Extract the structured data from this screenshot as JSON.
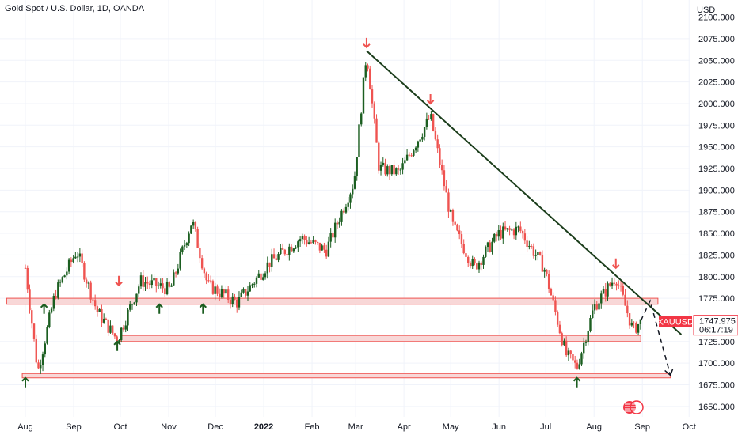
{
  "header": {
    "title": "Gold Spot / U.S. Dollar, 1D, OANDA"
  },
  "colors": {
    "up": "#26a69a",
    "up_dark": "#1b5e20",
    "down": "#ef5350",
    "trendline": "#1b3d1b",
    "zone_fill": "#f8d7d7",
    "zone_stroke": "#ef5350",
    "grid": "#f0f3fa",
    "badge": "#f23645"
  },
  "chart_data": {
    "type": "candlestick",
    "symbol": "XAUUSD",
    "y_unit": "USD",
    "ylim": [
      1650,
      2100
    ],
    "y_ticks": [
      2100,
      2075,
      2050,
      2025,
      2000,
      1975,
      1950,
      1925,
      1900,
      1875,
      1850,
      1825,
      1800,
      1775,
      1750,
      1725,
      1700,
      1675,
      1650
    ],
    "y_tick_labels": [
      "2100.000",
      "2075.000",
      "2050.000",
      "2025.000",
      "2000.000",
      "1975.000",
      "1950.000",
      "1925.000",
      "1900.000",
      "1875.000",
      "1850.000",
      "1825.000",
      "1800.000",
      "1775.000",
      "1750.000",
      "1725.000",
      "1700.000",
      "1675.000",
      "1650.000"
    ],
    "x_labels": [
      "Aug",
      "Sep",
      "Oct",
      "Nov",
      "Dec",
      "2022",
      "Feb",
      "Mar",
      "Apr",
      "May",
      "Jun",
      "Jul",
      "Aug",
      "Sep",
      "Oct"
    ],
    "x_label_bold": "2022",
    "grid": true,
    "last_price": {
      "label": "XAUUSD",
      "price": "1747.975",
      "countdown": "06:17:19"
    },
    "key_points": [
      {
        "date": "2021-08-01",
        "close": 1810
      },
      {
        "date": "2021-08-09",
        "close": 1690
      },
      {
        "date": "2021-08-20",
        "close": 1780
      },
      {
        "date": "2021-09-03",
        "close": 1830
      },
      {
        "date": "2021-09-16",
        "close": 1760
      },
      {
        "date": "2021-09-29",
        "close": 1727
      },
      {
        "date": "2021-10-14",
        "close": 1795
      },
      {
        "date": "2021-11-02",
        "close": 1785
      },
      {
        "date": "2021-11-16",
        "close": 1865
      },
      {
        "date": "2021-11-26",
        "close": 1790
      },
      {
        "date": "2021-12-15",
        "close": 1770
      },
      {
        "date": "2022-01-04",
        "close": 1815
      },
      {
        "date": "2022-01-25",
        "close": 1845
      },
      {
        "date": "2022-02-10",
        "close": 1830
      },
      {
        "date": "2022-02-28",
        "close": 1910
      },
      {
        "date": "2022-03-08",
        "close": 2060
      },
      {
        "date": "2022-03-16",
        "close": 1925
      },
      {
        "date": "2022-03-29",
        "close": 1920
      },
      {
        "date": "2022-04-18",
        "close": 1985
      },
      {
        "date": "2022-05-02",
        "close": 1860
      },
      {
        "date": "2022-05-16",
        "close": 1810
      },
      {
        "date": "2022-06-01",
        "close": 1850
      },
      {
        "date": "2022-06-14",
        "close": 1855
      },
      {
        "date": "2022-06-30",
        "close": 1810
      },
      {
        "date": "2022-07-14",
        "close": 1710
      },
      {
        "date": "2022-07-21",
        "close": 1695
      },
      {
        "date": "2022-08-01",
        "close": 1765
      },
      {
        "date": "2022-08-15",
        "close": 1800
      },
      {
        "date": "2022-08-26",
        "close": 1738
      },
      {
        "date": "2022-08-31",
        "close": 1748
      }
    ],
    "trendline": [
      {
        "date": "2022-03-08",
        "price": 2061
      },
      {
        "date": "2022-09-26",
        "price": 1733
      }
    ],
    "support_zones": [
      {
        "from": "2021-07-20",
        "to": "2022-09-11",
        "top": 1775,
        "bottom": 1768
      },
      {
        "from": "2021-10-01",
        "to": "2022-08-31",
        "top": 1732,
        "bottom": 1725
      },
      {
        "from": "2021-07-30",
        "to": "2022-09-19",
        "top": 1688,
        "bottom": 1683
      }
    ],
    "projected_path": [
      {
        "date": "2022-08-31",
        "price": 1749
      },
      {
        "date": "2022-09-06",
        "price": 1772
      },
      {
        "date": "2022-09-19",
        "price": 1686
      }
    ],
    "arrows_down": [
      {
        "date": "2021-09-30",
        "price": 1790
      },
      {
        "date": "2022-03-08",
        "price": 2065
      },
      {
        "date": "2022-04-18",
        "price": 2000
      },
      {
        "date": "2022-08-15",
        "price": 1810
      }
    ],
    "arrows_up": [
      {
        "date": "2021-08-01",
        "price": 1683
      },
      {
        "date": "2021-08-13",
        "price": 1768
      },
      {
        "date": "2021-09-29",
        "price": 1725
      },
      {
        "date": "2021-10-26",
        "price": 1768
      },
      {
        "date": "2021-11-23",
        "price": 1768
      },
      {
        "date": "2022-07-21",
        "price": 1683
      }
    ]
  }
}
